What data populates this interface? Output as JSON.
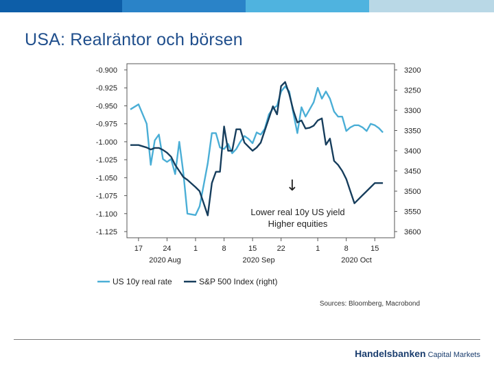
{
  "slide": {
    "title": "USA: Realräntor och börsen",
    "brand_name": "Handelsbanken",
    "brand_suffix": "Capital Markets",
    "band_colors": [
      "#0d5ea8",
      "#2a83c8",
      "#4fb3df",
      "#b9d8e6"
    ]
  },
  "chart_data": {
    "type": "line",
    "title": "",
    "left_axis": {
      "min": -1.125,
      "max": -0.9,
      "inverted": false,
      "tick_labels": [
        "-0.900",
        "-0.925",
        "-0.950",
        "-0.975",
        "-1.000",
        "-1.025",
        "-1.050",
        "-1.075",
        "-1.100",
        "-1.125"
      ]
    },
    "right_axis": {
      "min": 3200,
      "max": 3600,
      "inverted": true,
      "tick_labels": [
        "3200",
        "3250",
        "3300",
        "3350",
        "3400",
        "3450",
        "3500",
        "3550",
        "3600"
      ]
    },
    "x_day_range": [
      0,
      64
    ],
    "x_ticks": [
      {
        "label": "17",
        "day": 2
      },
      {
        "label": "24",
        "day": 9
      },
      {
        "label": "1",
        "day": 16
      },
      {
        "label": "8",
        "day": 23
      },
      {
        "label": "15",
        "day": 30
      },
      {
        "label": "22",
        "day": 37
      },
      {
        "label": "1",
        "day": 46
      },
      {
        "label": "8",
        "day": 53
      },
      {
        "label": "15",
        "day": 60
      }
    ],
    "month_labels": [
      {
        "label": "2020 Aug",
        "day": 8.5
      },
      {
        "label": "2020 Sep",
        "day": 31.5
      },
      {
        "label": "2020 Oct",
        "day": 55.5
      }
    ],
    "series": [
      {
        "name": "US 10y real rate",
        "axis": "left",
        "color": "#4aaed6",
        "x": [
          0,
          2,
          4,
          5,
          6,
          7,
          8,
          9,
          10,
          11,
          12,
          13,
          14,
          16,
          17,
          18,
          19,
          20,
          21,
          22,
          23,
          24,
          25,
          26,
          27,
          28,
          29,
          30,
          31,
          32,
          33,
          34,
          35,
          36,
          37,
          38,
          39,
          40,
          41,
          42,
          43,
          44,
          45,
          46,
          47,
          48,
          49,
          50,
          51,
          52,
          53,
          54,
          55,
          56,
          57,
          58,
          59,
          60,
          61,
          62
        ],
        "values": [
          -0.955,
          -0.948,
          -0.975,
          -1.032,
          -0.998,
          -0.99,
          -1.024,
          -1.028,
          -1.024,
          -1.045,
          -1.0,
          -1.043,
          -1.1,
          -1.102,
          -1.09,
          -1.06,
          -1.03,
          -0.988,
          -0.988,
          -1.008,
          -1.01,
          -1.003,
          -1.016,
          -1.01,
          -1.0,
          -0.992,
          -0.996,
          -1.002,
          -0.987,
          -0.99,
          -0.982,
          -0.962,
          -0.954,
          -0.95,
          -0.93,
          -0.923,
          -0.93,
          -0.96,
          -0.988,
          -0.952,
          -0.965,
          -0.955,
          -0.945,
          -0.925,
          -0.94,
          -0.93,
          -0.94,
          -0.958,
          -0.965,
          -0.965,
          -0.985,
          -0.98,
          -0.977,
          -0.977,
          -0.98,
          -0.985,
          -0.975,
          -0.977,
          -0.981,
          -0.987
        ]
      },
      {
        "name": "S&P 500 Index (right)",
        "axis": "right",
        "color": "#163d5c",
        "x": [
          0,
          2,
          4,
          5,
          6,
          7,
          8,
          9,
          10,
          11,
          12,
          13,
          14,
          16,
          17,
          18,
          19,
          20,
          21,
          22,
          23,
          24,
          25,
          26,
          27,
          28,
          29,
          30,
          31,
          32,
          33,
          34,
          35,
          36,
          37,
          38,
          39,
          40,
          41,
          42,
          43,
          44,
          45,
          46,
          47,
          48,
          49,
          50,
          51,
          52,
          53,
          54,
          55,
          56,
          57,
          58,
          59,
          60,
          61,
          62
        ],
        "values": [
          3386,
          3386,
          3392,
          3397,
          3393,
          3393,
          3398,
          3405,
          3415,
          3435,
          3450,
          3465,
          3472,
          3490,
          3500,
          3530,
          3560,
          3480,
          3452,
          3452,
          3340,
          3400,
          3400,
          3347,
          3347,
          3380,
          3390,
          3400,
          3392,
          3380,
          3350,
          3320,
          3290,
          3310,
          3240,
          3230,
          3260,
          3300,
          3330,
          3325,
          3345,
          3343,
          3338,
          3325,
          3320,
          3385,
          3370,
          3425,
          3435,
          3450,
          3470,
          3500,
          3530,
          3520,
          3510,
          3500,
          3490,
          3480,
          3480,
          3480
        ]
      }
    ],
    "annotation": {
      "arrow": "↓",
      "line1": "Lower real 10y US yield",
      "line2": "Higher equities"
    },
    "source": "Sources: Bloomberg, Macrobond",
    "legend_position": "bottom-left"
  }
}
